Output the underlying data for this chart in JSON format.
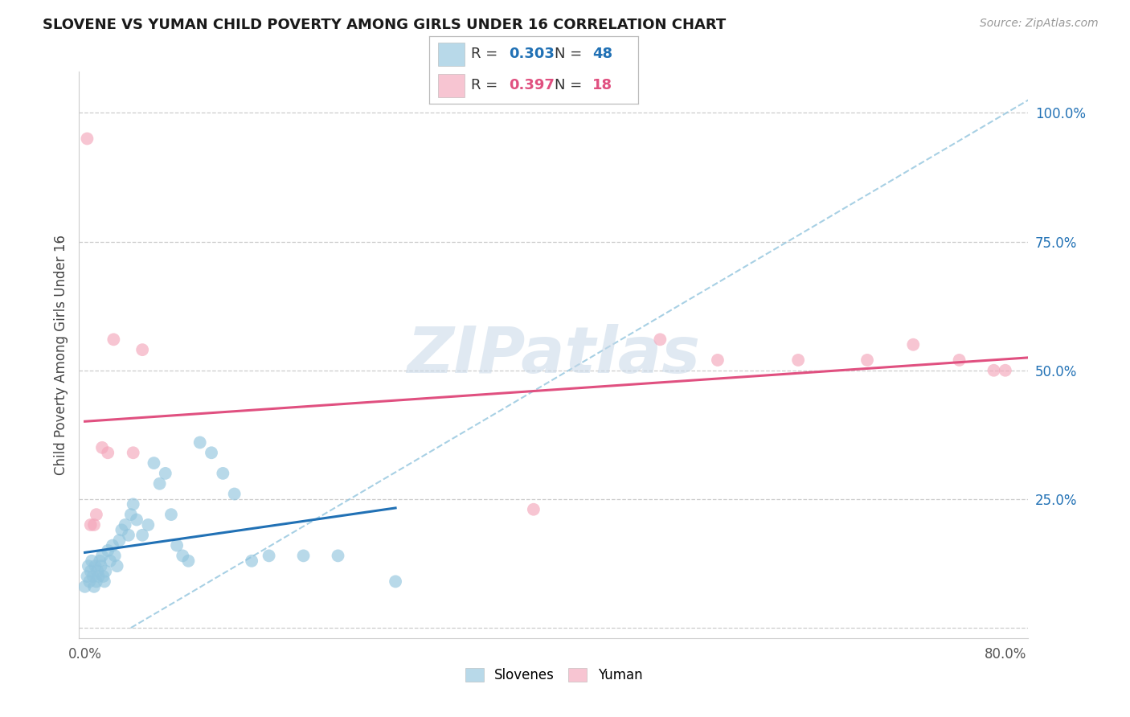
{
  "title": "SLOVENE VS YUMAN CHILD POVERTY AMONG GIRLS UNDER 16 CORRELATION CHART",
  "source": "Source: ZipAtlas.com",
  "ylabel": "Child Poverty Among Girls Under 16",
  "xlim": [
    -0.005,
    0.82
  ],
  "ylim": [
    -0.02,
    1.08
  ],
  "xtick_positions": [
    0.0,
    0.1,
    0.2,
    0.3,
    0.4,
    0.5,
    0.6,
    0.7,
    0.8
  ],
  "xticklabels": [
    "0.0%",
    "",
    "",
    "",
    "",
    "",
    "",
    "",
    "80.0%"
  ],
  "ytick_positions": [
    0.0,
    0.25,
    0.5,
    0.75,
    1.0
  ],
  "yticklabels_right": [
    "",
    "25.0%",
    "50.0%",
    "75.0%",
    "100.0%"
  ],
  "slovene_R": 0.303,
  "slovene_N": 48,
  "yuman_R": 0.397,
  "yuman_N": 18,
  "slovene_color": "#92c5de",
  "yuman_color": "#f4a6ba",
  "trendline_slovene_color": "#2171b5",
  "trendline_yuman_color": "#e05080",
  "dashed_line_color": "#92c5de",
  "slovene_x": [
    0.0,
    0.002,
    0.003,
    0.004,
    0.005,
    0.006,
    0.007,
    0.008,
    0.009,
    0.01,
    0.011,
    0.012,
    0.013,
    0.014,
    0.015,
    0.016,
    0.017,
    0.018,
    0.02,
    0.022,
    0.024,
    0.026,
    0.028,
    0.03,
    0.032,
    0.035,
    0.038,
    0.04,
    0.042,
    0.045,
    0.05,
    0.055,
    0.06,
    0.065,
    0.07,
    0.075,
    0.08,
    0.085,
    0.09,
    0.1,
    0.11,
    0.12,
    0.13,
    0.145,
    0.16,
    0.19,
    0.22,
    0.27
  ],
  "slovene_y": [
    0.08,
    0.1,
    0.12,
    0.09,
    0.11,
    0.13,
    0.1,
    0.08,
    0.12,
    0.09,
    0.11,
    0.1,
    0.13,
    0.12,
    0.14,
    0.1,
    0.09,
    0.11,
    0.15,
    0.13,
    0.16,
    0.14,
    0.12,
    0.17,
    0.19,
    0.2,
    0.18,
    0.22,
    0.24,
    0.21,
    0.18,
    0.2,
    0.32,
    0.28,
    0.3,
    0.22,
    0.16,
    0.14,
    0.13,
    0.36,
    0.34,
    0.3,
    0.26,
    0.13,
    0.14,
    0.14,
    0.14,
    0.09
  ],
  "yuman_x": [
    0.002,
    0.005,
    0.008,
    0.01,
    0.015,
    0.02,
    0.025,
    0.042,
    0.05,
    0.39,
    0.5,
    0.55,
    0.62,
    0.68,
    0.72,
    0.76,
    0.79,
    0.8
  ],
  "yuman_y": [
    0.95,
    0.2,
    0.2,
    0.22,
    0.35,
    0.34,
    0.56,
    0.34,
    0.54,
    0.23,
    0.56,
    0.52,
    0.52,
    0.52,
    0.55,
    0.52,
    0.5,
    0.5
  ],
  "watermark": "ZIPatlas",
  "background_color": "#ffffff",
  "grid_color": "#cccccc"
}
